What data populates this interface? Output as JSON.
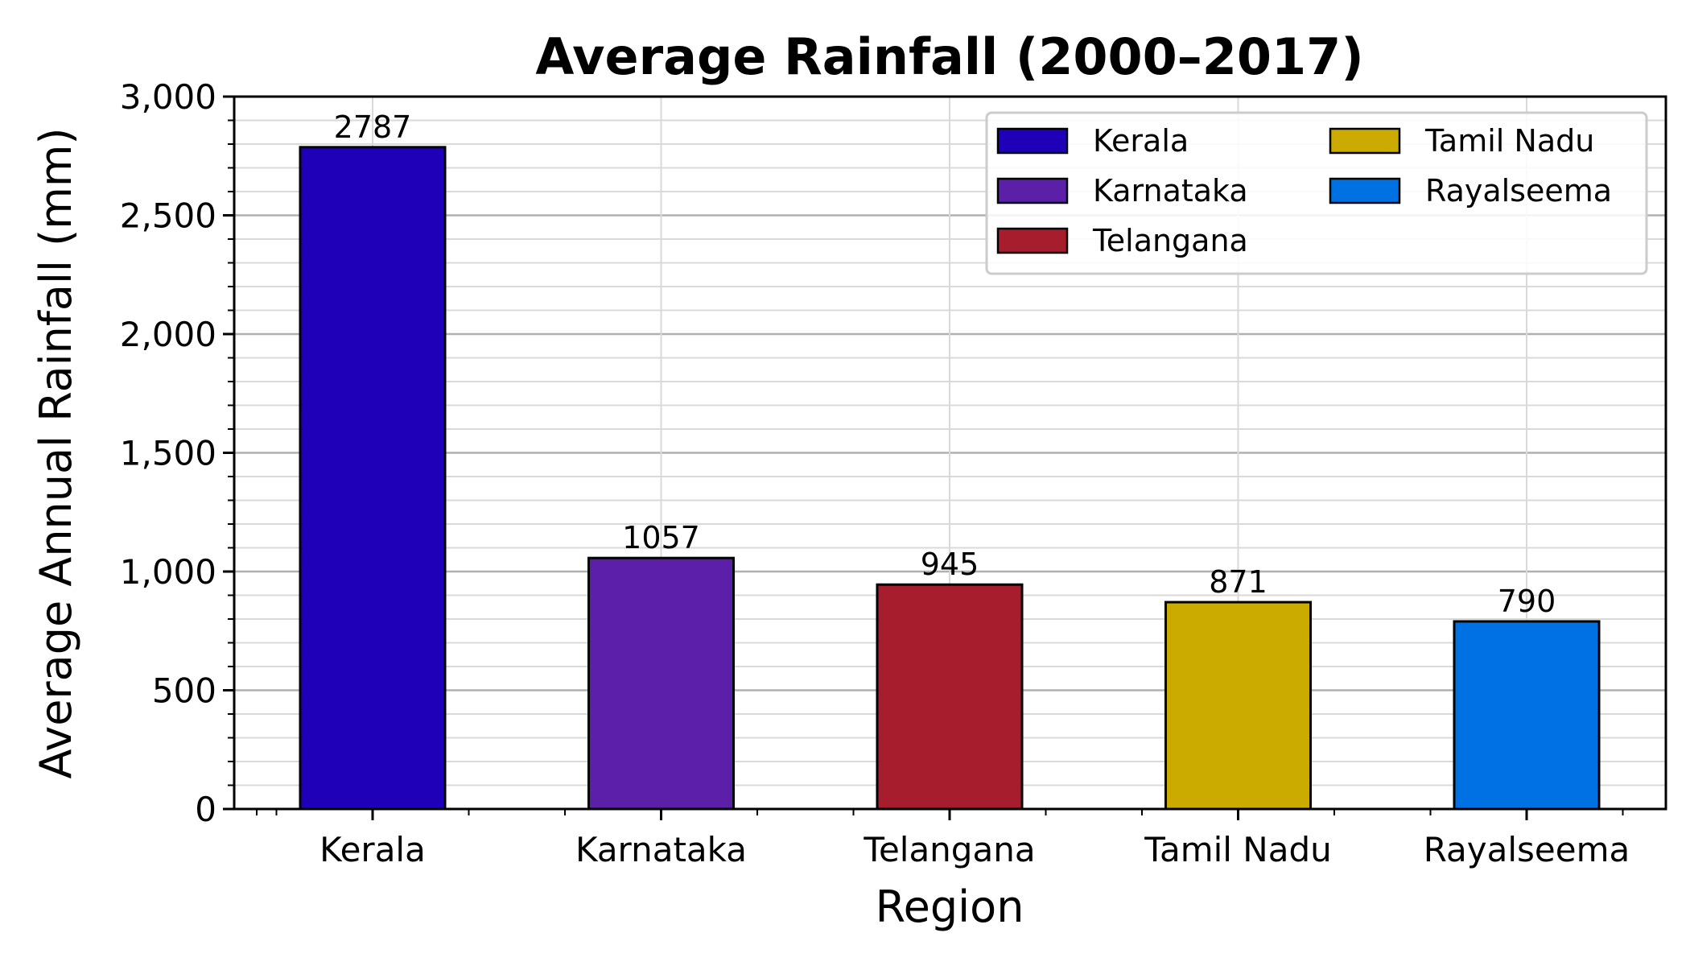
{
  "chart_data": {
    "type": "bar",
    "title": "Average Rainfall (2000–2017)",
    "xlabel": "Region",
    "ylabel": "Average Annual Rainfall (mm)",
    "categories": [
      "Kerala",
      "Karnataka",
      "Telangana",
      "Tamil Nadu",
      "Rayalseema"
    ],
    "values": [
      2787,
      1057,
      945,
      871,
      790
    ],
    "value_labels": [
      "2787",
      "1057",
      "945",
      "871",
      "790"
    ],
    "colors": [
      "#1f00b8",
      "#5b1fa8",
      "#a61e2e",
      "#ccab00",
      "#0071e3"
    ],
    "ylim": [
      0,
      3000
    ],
    "yticks": [
      0,
      500,
      1000,
      1500,
      2000,
      2500,
      3000
    ],
    "ytick_labels": [
      "0",
      "500",
      "1,000",
      "1,500",
      "2,000",
      "2,500",
      "3,000"
    ],
    "grid": true,
    "legend": {
      "placement": "top-right",
      "columns": 2,
      "entries": [
        "Kerala",
        "Karnataka",
        "Telangana",
        "Tamil Nadu",
        "Rayalseema"
      ]
    }
  }
}
